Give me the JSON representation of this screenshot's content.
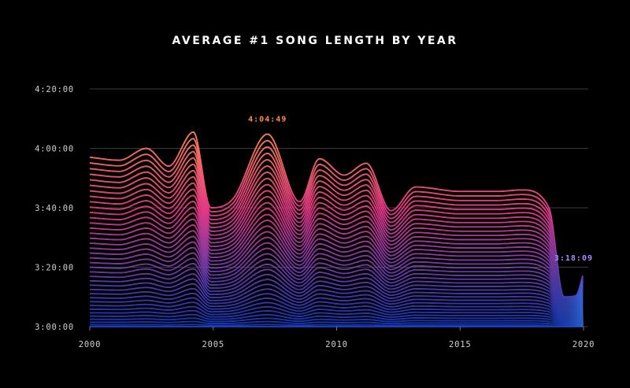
{
  "chart_data": {
    "type": "area",
    "title": "AVERAGE #1 SONG LENGTH BY YEAR",
    "xlabel": "",
    "ylabel": "",
    "x_ticks": [
      "2000",
      "2005",
      "2010",
      "2015",
      "2020"
    ],
    "y_ticks": [
      "3:00:00",
      "3:20:00",
      "3:40:00",
      "4:00:00",
      "4:20:00"
    ],
    "y_range_seconds": [
      180,
      260
    ],
    "grid": true,
    "colors": {
      "top": "#ff8a4c",
      "middle": "#f03c8c",
      "bottom": "#1a4cff",
      "low_end": "#3a7bff"
    },
    "points": [
      {
        "year": 2000.0,
        "seconds": 237
      },
      {
        "year": 2001.2,
        "seconds": 236
      },
      {
        "year": 2002.3,
        "seconds": 240
      },
      {
        "year": 2003.2,
        "seconds": 234
      },
      {
        "year": 2004.2,
        "seconds": 245.5
      },
      {
        "year": 2004.9,
        "seconds": 220
      },
      {
        "year": 2005.8,
        "seconds": 223
      },
      {
        "year": 2007.2,
        "seconds": 244.8
      },
      {
        "year": 2008.5,
        "seconds": 222
      },
      {
        "year": 2009.3,
        "seconds": 236.5
      },
      {
        "year": 2010.3,
        "seconds": 231
      },
      {
        "year": 2011.2,
        "seconds": 235
      },
      {
        "year": 2012.2,
        "seconds": 219
      },
      {
        "year": 2013.2,
        "seconds": 227
      },
      {
        "year": 2015.0,
        "seconds": 225.5
      },
      {
        "year": 2016.5,
        "seconds": 225.5
      },
      {
        "year": 2017.5,
        "seconds": 226
      },
      {
        "year": 2018.6,
        "seconds": 220
      },
      {
        "year": 2019.2,
        "seconds": 190
      },
      {
        "year": 2019.7,
        "seconds": 190.5
      },
      {
        "year": 2020.0,
        "seconds": 198
      }
    ],
    "annotations": [
      {
        "text": "4:04:49",
        "year": 2007.2,
        "seconds": 244.8,
        "color": "#ff8a4c"
      },
      {
        "text": "3:18:09",
        "year": 2020.0,
        "seconds": 198,
        "color": "#a78bff"
      }
    ]
  }
}
